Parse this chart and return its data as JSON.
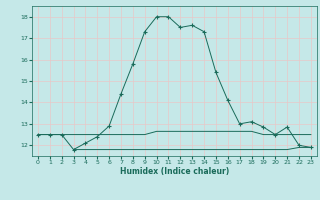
{
  "title": "",
  "xlabel": "Humidex (Indice chaleur)",
  "bg_color": "#c5e8e8",
  "grid_color": "#e8c8c8",
  "line_color": "#1a6b5a",
  "xlim": [
    -0.5,
    23.5
  ],
  "ylim": [
    11.5,
    18.5
  ],
  "yticks": [
    12,
    13,
    14,
    15,
    16,
    17,
    18
  ],
  "xticks": [
    0,
    1,
    2,
    3,
    4,
    5,
    6,
    7,
    8,
    9,
    10,
    11,
    12,
    13,
    14,
    15,
    16,
    17,
    18,
    19,
    20,
    21,
    22,
    23
  ],
  "main_series_x": [
    0,
    1,
    2,
    3,
    4,
    5,
    6,
    7,
    8,
    9,
    10,
    11,
    12,
    13,
    14,
    15,
    16,
    17,
    18,
    19,
    20,
    21,
    22,
    23
  ],
  "main_series_y": [
    12.5,
    12.5,
    12.5,
    11.8,
    12.1,
    12.4,
    12.9,
    14.4,
    15.8,
    17.3,
    18.0,
    18.0,
    17.5,
    17.6,
    17.3,
    15.4,
    14.1,
    13.0,
    13.1,
    12.85,
    12.5,
    12.85,
    12.0,
    11.9
  ],
  "flat_line1_x": [
    0,
    1,
    2,
    3,
    4,
    5,
    6,
    7,
    8,
    9,
    10,
    11,
    12,
    13,
    14,
    15,
    16,
    17,
    18,
    19,
    20,
    21,
    22,
    23
  ],
  "flat_line1_y": [
    12.5,
    12.5,
    12.5,
    12.5,
    12.5,
    12.5,
    12.5,
    12.5,
    12.5,
    12.5,
    12.65,
    12.65,
    12.65,
    12.65,
    12.65,
    12.65,
    12.65,
    12.65,
    12.65,
    12.5,
    12.5,
    12.5,
    12.5,
    12.5
  ],
  "flat_line2_x": [
    3,
    4,
    5,
    6,
    7,
    8,
    9,
    10,
    11,
    12,
    13,
    14,
    15,
    16,
    17,
    18,
    19,
    20,
    21,
    22,
    23
  ],
  "flat_line2_y": [
    11.8,
    11.8,
    11.8,
    11.8,
    11.8,
    11.8,
    11.8,
    11.8,
    11.8,
    11.8,
    11.8,
    11.8,
    11.8,
    11.8,
    11.8,
    11.8,
    11.8,
    11.8,
    11.8,
    11.9,
    11.9
  ],
  "xlabel_fontsize": 5.5,
  "tick_fontsize": 4.5,
  "linewidth": 0.7,
  "marker_size": 2.5
}
